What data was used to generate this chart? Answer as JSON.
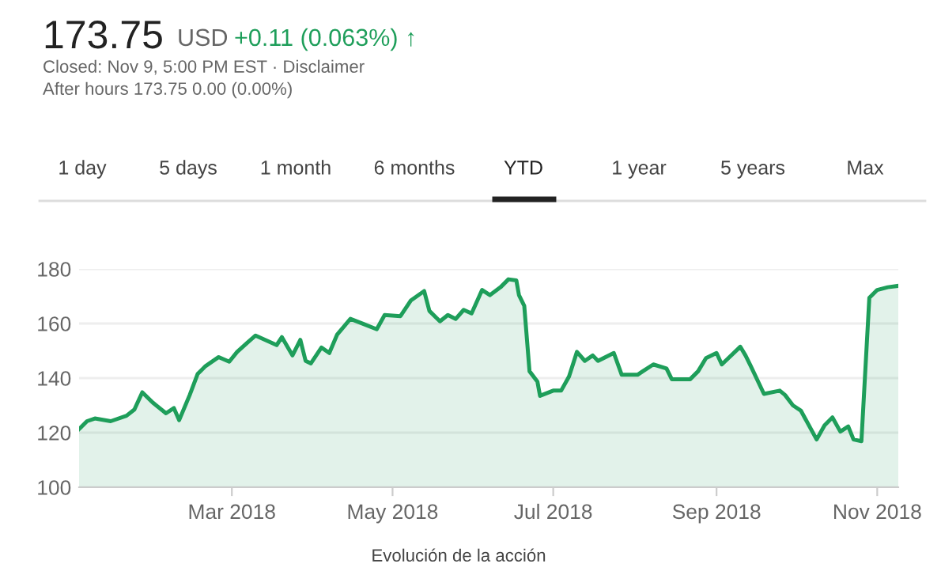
{
  "chart_data": {
    "type": "area",
    "annotations": [
      "173.75",
      "USD",
      "+0.11 (0.063%) ↑",
      "Closed: Nov 9, 5:00 PM EST · Disclaimer",
      "After hours 173.75 0.00 (0.00%)",
      "1 day",
      "5 days",
      "1 month",
      "6 months",
      "YTD",
      "1 year",
      "5 years",
      "Max",
      "Evolución de la acción"
    ],
    "series": [
      {
        "color": "#1e9e5a",
        "x": [
          "2018-01-02",
          "2018-01-05",
          "2018-01-08",
          "2018-01-14",
          "2018-01-20",
          "2018-01-23",
          "2018-01-26",
          "2018-01-30",
          "2018-02-04",
          "2018-02-07",
          "2018-02-09",
          "2018-02-13",
          "2018-02-16",
          "2018-02-19",
          "2018-02-24",
          "2018-02-28",
          "2018-03-03",
          "2018-03-07",
          "2018-03-10",
          "2018-03-18",
          "2018-03-20",
          "2018-03-24",
          "2018-03-27",
          "2018-03-29",
          "2018-03-31",
          "2018-04-04",
          "2018-04-07",
          "2018-04-10",
          "2018-04-15",
          "2018-04-20",
          "2018-04-25",
          "2018-04-28",
          "2018-05-04",
          "2018-05-08",
          "2018-05-13",
          "2018-05-15",
          "2018-05-19",
          "2018-05-22",
          "2018-05-25",
          "2018-05-28",
          "2018-05-31",
          "2018-06-04",
          "2018-06-07",
          "2018-06-11",
          "2018-06-14",
          "2018-06-17",
          "2018-06-18",
          "2018-06-20",
          "2018-06-22",
          "2018-06-25",
          "2018-06-26",
          "2018-07-01",
          "2018-07-04",
          "2018-07-07",
          "2018-07-10",
          "2018-07-13",
          "2018-07-16",
          "2018-07-18",
          "2018-07-24",
          "2018-07-27",
          "2018-08-02",
          "2018-08-04",
          "2018-08-08",
          "2018-08-13",
          "2018-08-15",
          "2018-08-22",
          "2018-08-25",
          "2018-08-28",
          "2018-09-01",
          "2018-09-03",
          "2018-09-10",
          "2018-09-12",
          "2018-09-14",
          "2018-09-19",
          "2018-09-25",
          "2018-09-27",
          "2018-09-30",
          "2018-10-03",
          "2018-10-09",
          "2018-10-12",
          "2018-10-15",
          "2018-10-18",
          "2018-10-21",
          "2018-10-23",
          "2018-10-26",
          "2018-10-29",
          "2018-11-01",
          "2018-11-05",
          "2018-11-09"
        ],
        "values": [
          121.3,
          124.2,
          125.2,
          124.2,
          126.2,
          128.5,
          134.8,
          131,
          127.1,
          129,
          124.6,
          133.8,
          141.5,
          144.4,
          147.7,
          146,
          149.6,
          153.1,
          155.6,
          152.1,
          155,
          148.3,
          154,
          146.3,
          145.4,
          151.2,
          149.2,
          156,
          161.7,
          159.8,
          157.9,
          163.1,
          162.7,
          168.5,
          171.9,
          164.6,
          160.8,
          163.1,
          161.7,
          165,
          163.7,
          172.3,
          170.4,
          173.3,
          176.2,
          175.8,
          170.4,
          166.5,
          142.5,
          138.7,
          133.5,
          135.4,
          135.4,
          140.6,
          149.6,
          146.3,
          148.3,
          146.3,
          149.2,
          141.2,
          141.2,
          142.5,
          145,
          143.5,
          139.6,
          139.6,
          142.5,
          147.3,
          149.2,
          145,
          151.5,
          148.3,
          144.4,
          134.2,
          135.4,
          133.8,
          130,
          128.1,
          117.5,
          122.7,
          125.6,
          120.4,
          122.3,
          117.5,
          116.9,
          169.4,
          172.3,
          173.3,
          173.8
        ]
      }
    ],
    "xlim": [
      "2018-01-02",
      "2018-11-09"
    ],
    "xticks": [
      {
        "value": "2018-03-01",
        "label": "Mar 2018"
      },
      {
        "value": "2018-05-01",
        "label": "May 2018"
      },
      {
        "value": "2018-07-01",
        "label": "Jul 2018"
      },
      {
        "value": "2018-09-01",
        "label": "Sep 2018"
      },
      {
        "value": "2018-11-01",
        "label": "Nov 2018"
      }
    ],
    "ylim": [
      100,
      180
    ],
    "yticks": [
      100,
      120,
      140,
      160,
      180
    ],
    "grid": "y"
  }
}
